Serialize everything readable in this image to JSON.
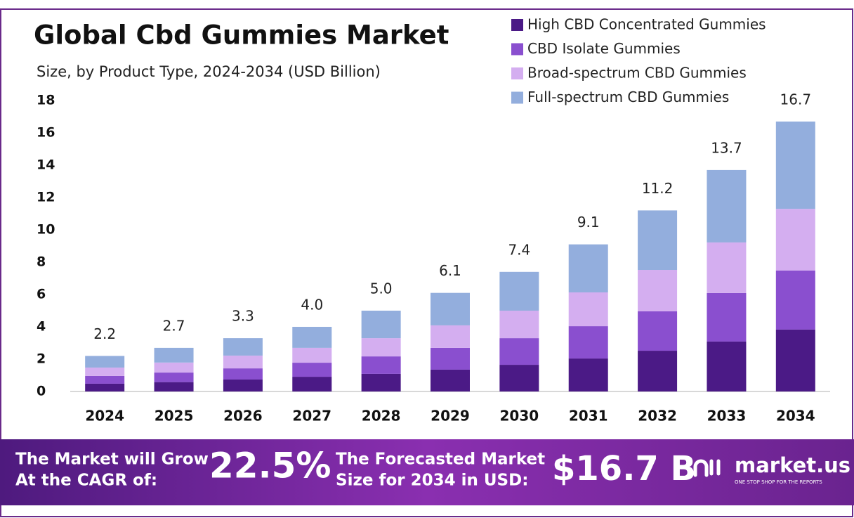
{
  "chart_data": {
    "type": "stacked-bar",
    "title": "Global Cbd Gummies Market",
    "subtitle": "Size, by Product Type, 2024-2034 (USD Billion)",
    "categories": [
      "2024",
      "2025",
      "2026",
      "2027",
      "2028",
      "2029",
      "2030",
      "2031",
      "2032",
      "2033",
      "2034"
    ],
    "series": [
      {
        "name": "High CBD Concentrated Gummies",
        "color": "#4b1a86",
        "values": [
          0.48,
          0.58,
          0.74,
          0.91,
          1.09,
          1.35,
          1.65,
          2.04,
          2.52,
          3.09,
          3.83
        ]
      },
      {
        "name": "CBD Isolate Gummies",
        "color": "#8a4fcf",
        "values": [
          0.48,
          0.59,
          0.69,
          0.87,
          1.08,
          1.35,
          1.65,
          2.0,
          2.44,
          3.0,
          3.65
        ]
      },
      {
        "name": "Broad-spectrum CBD Gummies",
        "color": "#d4aef0",
        "values": [
          0.52,
          0.62,
          0.79,
          0.92,
          1.13,
          1.39,
          1.7,
          2.09,
          2.56,
          3.13,
          3.82
        ]
      },
      {
        "name": "Full-spectrum CBD Gummies",
        "color": "#93aedd",
        "values": [
          0.72,
          0.91,
          1.08,
          1.3,
          1.7,
          2.01,
          2.4,
          2.97,
          3.68,
          4.48,
          5.4
        ]
      }
    ],
    "totals": [
      2.2,
      2.7,
      3.3,
      4.0,
      5.0,
      6.1,
      7.4,
      9.1,
      11.2,
      13.7,
      16.7
    ],
    "total_labels": [
      "2.2",
      "2.7",
      "3.3",
      "4.0",
      "5.0",
      "6.1",
      "7.4",
      "9.1",
      "11.2",
      "13.7",
      "16.7"
    ],
    "ylim": [
      0,
      18
    ],
    "yticks": [
      0,
      2,
      4,
      6,
      8,
      10,
      12,
      14,
      16,
      18
    ],
    "grid": false,
    "legend": "top-right"
  },
  "footer": {
    "cagr_text_1": "The Market will Grow",
    "cagr_text_2": "At the CAGR of:",
    "cagr_value": "22.5%",
    "forecast_text_1": "The Forecasted Market",
    "forecast_text_2": "Size for 2034 in USD:",
    "forecast_value": "$16.7 B",
    "brand": "market.us",
    "tagline": "ONE STOP SHOP FOR THE REPORTS"
  }
}
